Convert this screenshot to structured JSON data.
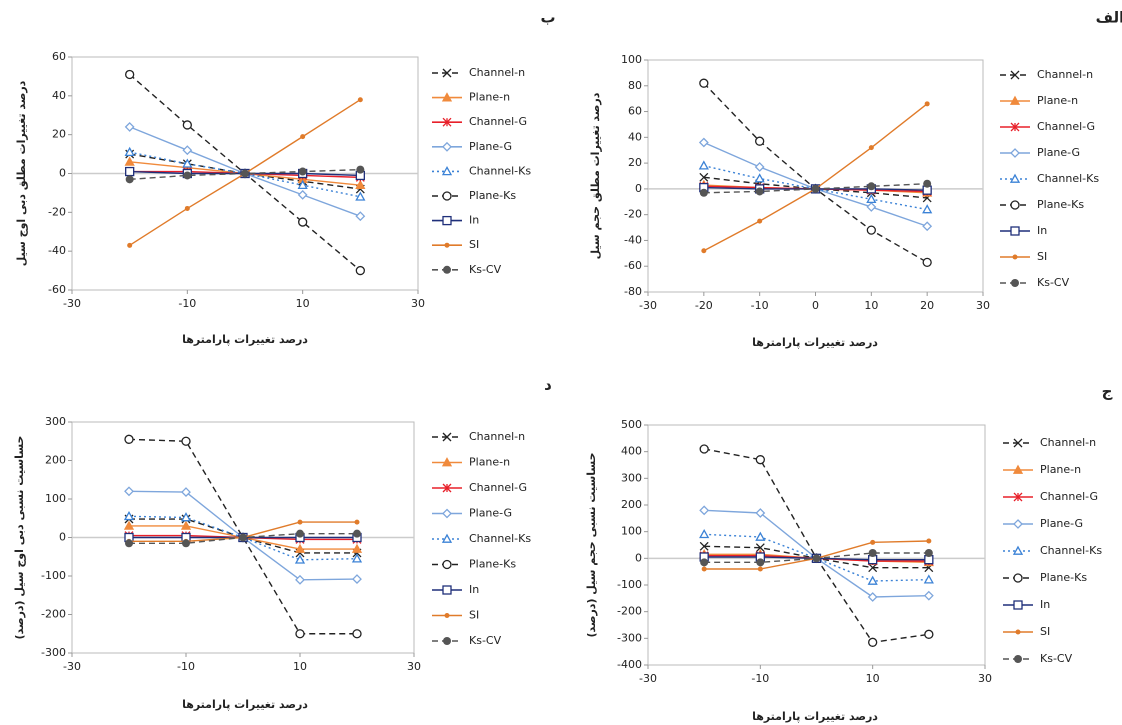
{
  "chart_data": [
    {
      "type": "line",
      "panel_label": "الف",
      "y_label": "درصد تغییرات مطلق حجم سیل",
      "x_label": "درصد تغییرات پارامترها",
      "x": [
        -20,
        -10,
        0,
        10,
        20
      ],
      "xlim": [
        -30,
        30
      ],
      "xticks": [
        -30,
        -20,
        -10,
        0,
        10,
        20,
        30
      ],
      "ylim": [
        -80,
        100
      ],
      "yticks": [
        -80,
        -60,
        -40,
        -20,
        0,
        20,
        40,
        60,
        80,
        100
      ],
      "series": [
        {
          "name": "Channel-n",
          "color": "#222222",
          "line": "dashed",
          "marker": "x",
          "values": [
            9,
            4,
            0,
            -3,
            -7
          ]
        },
        {
          "name": "Plane-n",
          "color": "#f08a3c",
          "line": "solid",
          "marker": "triangle",
          "values": [
            3,
            1,
            0,
            -1,
            -3
          ]
        },
        {
          "name": "Channel-G",
          "color": "#e8202a",
          "line": "solid",
          "marker": "star",
          "values": [
            2,
            1,
            0,
            -1,
            -2
          ]
        },
        {
          "name": "Plane-G",
          "color": "#7ea6dc",
          "line": "solid",
          "marker": "diamond",
          "values": [
            36,
            17,
            0,
            -14,
            -29
          ]
        },
        {
          "name": "Channel-Ks",
          "color": "#3b82d6",
          "line": "dotted",
          "marker": "triangle-open",
          "values": [
            18,
            8,
            0,
            -8,
            -16
          ]
        },
        {
          "name": "Plane-Ks",
          "color": "#222222",
          "line": "dashed",
          "marker": "circle-open",
          "values": [
            82,
            37,
            0,
            -32,
            -57
          ]
        },
        {
          "name": "In",
          "color": "#1f2f7a",
          "line": "solid",
          "marker": "square-open",
          "values": [
            1,
            0,
            0,
            0,
            -1
          ]
        },
        {
          "name": "SI",
          "color": "#e07b2a",
          "line": "solid",
          "marker": "dot",
          "values": [
            -48,
            -25,
            0,
            32,
            66
          ]
        },
        {
          "name": "Ks-CV",
          "color": "#555555",
          "line": "dashed",
          "marker": "circle",
          "values": [
            -3,
            -2,
            0,
            2,
            4
          ]
        }
      ]
    },
    {
      "type": "line",
      "panel_label": "ب",
      "y_label": "درصد تغییرات مطلق دبی اوج سیل",
      "x_label": "درصد تغییرات پارامترها",
      "x": [
        -20,
        -10,
        0,
        10,
        20
      ],
      "xlim": [
        -30,
        30
      ],
      "xticks": [
        -30,
        -10,
        10,
        30
      ],
      "ylim": [
        -60,
        60
      ],
      "yticks": [
        -60,
        -40,
        -20,
        0,
        20,
        40,
        60
      ],
      "series": [
        {
          "name": "Channel-n",
          "color": "#222222",
          "line": "dashed",
          "marker": "x",
          "values": [
            10,
            5,
            0,
            -4,
            -8
          ]
        },
        {
          "name": "Plane-n",
          "color": "#f08a3c",
          "line": "solid",
          "marker": "triangle",
          "values": [
            6,
            3,
            0,
            -3,
            -6
          ]
        },
        {
          "name": "Channel-G",
          "color": "#e8202a",
          "line": "solid",
          "marker": "star",
          "values": [
            1,
            1,
            0,
            -1,
            -2
          ]
        },
        {
          "name": "Plane-G",
          "color": "#7ea6dc",
          "line": "solid",
          "marker": "diamond",
          "values": [
            24,
            12,
            0,
            -11,
            -22
          ]
        },
        {
          "name": "Channel-Ks",
          "color": "#3b82d6",
          "line": "dotted",
          "marker": "triangle-open",
          "values": [
            11,
            5,
            0,
            -6,
            -12
          ]
        },
        {
          "name": "Plane-Ks",
          "color": "#222222",
          "line": "dashed",
          "marker": "circle-open",
          "values": [
            51,
            25,
            0,
            -25,
            -50
          ]
        },
        {
          "name": "In",
          "color": "#1f2f7a",
          "line": "solid",
          "marker": "square-open",
          "values": [
            1,
            0,
            0,
            0,
            -1
          ]
        },
        {
          "name": "SI",
          "color": "#e07b2a",
          "line": "solid",
          "marker": "dot",
          "values": [
            -37,
            -18,
            0,
            19,
            38
          ]
        },
        {
          "name": "Ks-CV",
          "color": "#555555",
          "line": "dashed",
          "marker": "circle",
          "values": [
            -3,
            -1,
            0,
            1,
            2
          ]
        }
      ]
    },
    {
      "type": "line",
      "panel_label": "د",
      "y_label": "حساسیت نسبی دبی اوج سیل (درصد)",
      "x_label": "درصد تغییرات پارامترها",
      "x": [
        -20,
        -10,
        0,
        10,
        20
      ],
      "xlim": [
        -30,
        30
      ],
      "xticks": [
        -30,
        -10,
        10,
        30
      ],
      "ylim": [
        -300,
        300
      ],
      "yticks": [
        -300,
        -200,
        -100,
        0,
        100,
        200,
        300
      ],
      "series": [
        {
          "name": "Channel-n",
          "color": "#222222",
          "line": "dashed",
          "marker": "x",
          "values": [
            48,
            48,
            0,
            -40,
            -40
          ]
        },
        {
          "name": "Plane-n",
          "color": "#f08a3c",
          "line": "solid",
          "marker": "triangle",
          "values": [
            30,
            30,
            0,
            -30,
            -30
          ]
        },
        {
          "name": "Channel-G",
          "color": "#e8202a",
          "line": "solid",
          "marker": "star",
          "values": [
            5,
            5,
            0,
            -5,
            -5
          ]
        },
        {
          "name": "Plane-G",
          "color": "#7ea6dc",
          "line": "solid",
          "marker": "diamond",
          "values": [
            120,
            118,
            0,
            -110,
            -108
          ]
        },
        {
          "name": "Channel-Ks",
          "color": "#3b82d6",
          "line": "dotted",
          "marker": "triangle-open",
          "values": [
            55,
            52,
            0,
            -58,
            -55
          ]
        },
        {
          "name": "Plane-Ks",
          "color": "#222222",
          "line": "dashed",
          "marker": "circle-open",
          "values": [
            255,
            250,
            0,
            -250,
            -250
          ]
        },
        {
          "name": "In",
          "color": "#1f2f7a",
          "line": "solid",
          "marker": "square-open",
          "values": [
            0,
            0,
            0,
            0,
            0
          ]
        },
        {
          "name": "SI",
          "color": "#e07b2a",
          "line": "solid",
          "marker": "dot",
          "values": [
            -10,
            -10,
            0,
            40,
            40
          ]
        },
        {
          "name": "Ks-CV",
          "color": "#555555",
          "line": "dashed",
          "marker": "circle",
          "values": [
            -15,
            -15,
            0,
            10,
            10
          ]
        }
      ]
    },
    {
      "type": "line",
      "panel_label": "ج",
      "y_label": "حساسیت نسبی حجم سیل (درصد)",
      "x_label": "درصد تغییرات پارامترها",
      "x": [
        -20,
        -10,
        0,
        10,
        20
      ],
      "xlim": [
        -30,
        30
      ],
      "xticks": [
        -30,
        -10,
        10,
        30
      ],
      "ylim": [
        -400,
        500
      ],
      "yticks": [
        -400,
        -300,
        -200,
        -100,
        0,
        100,
        200,
        300,
        400,
        500
      ],
      "series": [
        {
          "name": "Channel-n",
          "color": "#222222",
          "line": "dashed",
          "marker": "x",
          "values": [
            45,
            40,
            0,
            -35,
            -35
          ]
        },
        {
          "name": "Plane-n",
          "color": "#f08a3c",
          "line": "solid",
          "marker": "triangle",
          "values": [
            15,
            15,
            0,
            -10,
            -15
          ]
        },
        {
          "name": "Channel-G",
          "color": "#e8202a",
          "line": "solid",
          "marker": "star",
          "values": [
            10,
            10,
            0,
            -10,
            -10
          ]
        },
        {
          "name": "Plane-G",
          "color": "#7ea6dc",
          "line": "solid",
          "marker": "diamond",
          "values": [
            180,
            170,
            0,
            -145,
            -140
          ]
        },
        {
          "name": "Channel-Ks",
          "color": "#3b82d6",
          "line": "dotted",
          "marker": "triangle-open",
          "values": [
            90,
            80,
            0,
            -85,
            -80
          ]
        },
        {
          "name": "Plane-Ks",
          "color": "#222222",
          "line": "dashed",
          "marker": "circle-open",
          "values": [
            410,
            370,
            0,
            -315,
            -285
          ]
        },
        {
          "name": "In",
          "color": "#1f2f7a",
          "line": "solid",
          "marker": "square-open",
          "values": [
            5,
            5,
            0,
            -5,
            -5
          ]
        },
        {
          "name": "SI",
          "color": "#e07b2a",
          "line": "solid",
          "marker": "dot",
          "values": [
            -40,
            -40,
            0,
            60,
            65
          ]
        },
        {
          "name": "Ks-CV",
          "color": "#555555",
          "line": "dashed",
          "marker": "circle",
          "values": [
            -15,
            -15,
            0,
            20,
            20
          ]
        }
      ]
    }
  ]
}
